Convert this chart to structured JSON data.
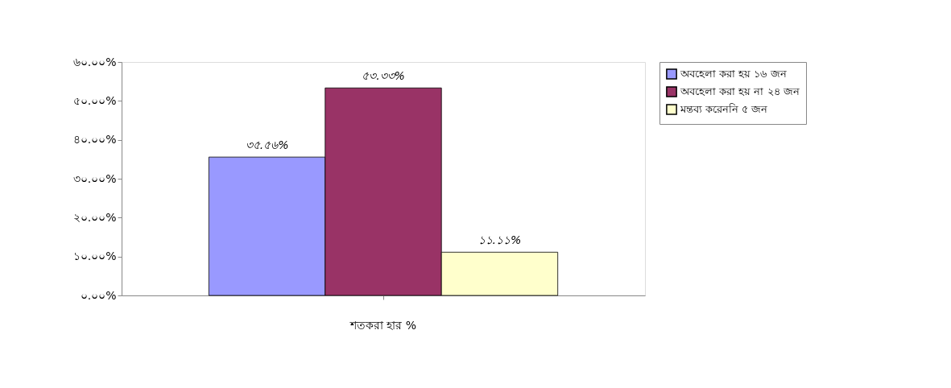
{
  "chart_data": {
    "type": "bar",
    "categories": [
      "শতকরা হার %"
    ],
    "series": [
      {
        "name": "অবহেলা করা হয় ১৬ জন",
        "color": "#9999ff",
        "values": [
          35.56
        ],
        "value_labels": [
          "৩৫.৫৬%"
        ]
      },
      {
        "name": "অবহেলা করা হয় না ২৪ জন",
        "color": "#993366",
        "values": [
          53.33
        ],
        "value_labels": [
          "৫৩.৩৩%"
        ]
      },
      {
        "name": "মন্তব্য করেননি ৫ জন",
        "color": "#ffffcc",
        "values": [
          11.11
        ],
        "value_labels": [
          "১১.১১%"
        ]
      }
    ],
    "ylim": [
      0,
      60
    ],
    "yticks": [
      {
        "value": 0,
        "label": "০.০০%"
      },
      {
        "value": 10,
        "label": "১০.০০%"
      },
      {
        "value": 20,
        "label": "২০.০০%"
      },
      {
        "value": 30,
        "label": "৩০.০০%"
      },
      {
        "value": 40,
        "label": "৪০.০০%"
      },
      {
        "value": 50,
        "label": "৫০.০০%"
      },
      {
        "value": 60,
        "label": "৬০.০০%"
      }
    ],
    "grid": false,
    "legend": "right"
  }
}
